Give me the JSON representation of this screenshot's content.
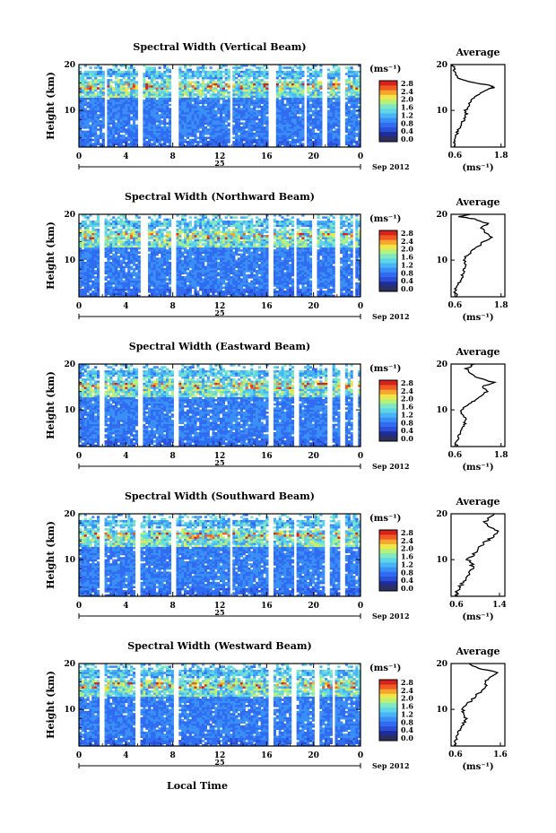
{
  "chart_data": {
    "type": "heatmap",
    "xlabel": "Local Time",
    "x_ticks": [
      "0",
      "4",
      "8",
      "12",
      "16",
      "20",
      "0"
    ],
    "x_range": [
      0,
      24
    ],
    "day_label": "25",
    "month_year_label": "Sep 2012",
    "y_ticks": [
      "20",
      "10"
    ],
    "y_range": [
      2,
      20
    ],
    "ylabel": "Height (km)",
    "colorbar": {
      "unit": "(ms⁻¹)",
      "ticks": [
        "2.8",
        "2.4",
        "2.0",
        "1.6",
        "1.2",
        "0.8",
        "0.4",
        "0.0"
      ],
      "range": [
        0,
        3.0
      ]
    },
    "average_title": "Average",
    "average_unit": "(ms⁻¹)",
    "panels": [
      {
        "title": "Spectral Width (Vertical Beam)",
        "avg_xticks": [
          "0.6",
          "1.8"
        ],
        "avg_xrange": [
          0.5,
          1.9
        ],
        "avg_profile": [
          [
            2,
            0.6
          ],
          [
            3,
            0.58
          ],
          [
            4,
            0.62
          ],
          [
            5,
            0.65
          ],
          [
            6,
            0.7
          ],
          [
            7,
            0.75
          ],
          [
            8,
            0.85
          ],
          [
            9,
            0.9
          ],
          [
            10,
            0.88
          ],
          [
            11,
            0.95
          ],
          [
            12,
            1.0
          ],
          [
            13,
            1.1
          ],
          [
            14,
            1.3
          ],
          [
            15,
            1.6
          ],
          [
            15.5,
            1.5
          ],
          [
            16,
            1.1
          ],
          [
            17,
            0.7
          ],
          [
            18,
            0.62
          ],
          [
            19,
            0.58
          ],
          [
            20,
            0.55
          ]
        ]
      },
      {
        "title": "Spectral Width (Northward Beam)",
        "avg_xticks": [
          "0.6",
          "1.8"
        ],
        "avg_xrange": [
          0.5,
          1.9
        ],
        "avg_profile": [
          [
            2,
            0.65
          ],
          [
            3,
            0.6
          ],
          [
            4,
            0.62
          ],
          [
            5,
            0.7
          ],
          [
            6,
            0.78
          ],
          [
            7,
            0.8
          ],
          [
            8,
            0.85
          ],
          [
            9,
            0.9
          ],
          [
            10,
            0.82
          ],
          [
            11,
            0.9
          ],
          [
            12,
            1.05
          ],
          [
            13,
            1.2
          ],
          [
            14,
            1.35
          ],
          [
            15,
            1.55
          ],
          [
            16,
            1.4
          ],
          [
            17,
            1.3
          ],
          [
            18,
            1.45
          ],
          [
            19,
            1.1
          ],
          [
            19.5,
            0.7
          ],
          [
            20,
            1.0
          ]
        ]
      },
      {
        "title": "Spectral Width (Eastward Beam)",
        "avg_xticks": [
          "0.6",
          "1.8"
        ],
        "avg_xrange": [
          0.5,
          1.9
        ],
        "avg_profile": [
          [
            2,
            0.65
          ],
          [
            3,
            0.62
          ],
          [
            4,
            0.7
          ],
          [
            5,
            0.75
          ],
          [
            6,
            0.8
          ],
          [
            7,
            0.85
          ],
          [
            8,
            0.9
          ],
          [
            9,
            0.8
          ],
          [
            10,
            0.75
          ],
          [
            11,
            0.9
          ],
          [
            12,
            1.1
          ],
          [
            13,
            1.25
          ],
          [
            14,
            1.45
          ],
          [
            15,
            1.3
          ],
          [
            16,
            1.6
          ],
          [
            17,
            1.2
          ],
          [
            18,
            1.0
          ],
          [
            19,
            0.9
          ],
          [
            20,
            1.1
          ]
        ]
      },
      {
        "title": "Spectral Width (Southward Beam)",
        "avg_xticks": [
          "0.6",
          "1.4"
        ],
        "avg_xrange": [
          0.5,
          1.5
        ],
        "avg_profile": [
          [
            2,
            0.62
          ],
          [
            3,
            0.6
          ],
          [
            4,
            0.65
          ],
          [
            5,
            0.72
          ],
          [
            6,
            0.8
          ],
          [
            7,
            0.85
          ],
          [
            8,
            0.9
          ],
          [
            9,
            0.88
          ],
          [
            10,
            0.82
          ],
          [
            11,
            0.9
          ],
          [
            12,
            1.0
          ],
          [
            13,
            1.05
          ],
          [
            14,
            1.15
          ],
          [
            15,
            1.3
          ],
          [
            16,
            1.4
          ],
          [
            17,
            1.25
          ],
          [
            18,
            1.1
          ],
          [
            19,
            1.2
          ],
          [
            20,
            1.3
          ]
        ]
      },
      {
        "title": "Spectral Width (Westward Beam)",
        "avg_xticks": [
          "0.6",
          "1.6"
        ],
        "avg_xrange": [
          0.5,
          1.7
        ],
        "avg_profile": [
          [
            2,
            0.6
          ],
          [
            3,
            0.58
          ],
          [
            4,
            0.62
          ],
          [
            5,
            0.68
          ],
          [
            6,
            0.72
          ],
          [
            7,
            0.78
          ],
          [
            8,
            0.82
          ],
          [
            9,
            0.8
          ],
          [
            10,
            0.75
          ],
          [
            11,
            0.85
          ],
          [
            12,
            0.95
          ],
          [
            13,
            1.05
          ],
          [
            14,
            1.2
          ],
          [
            15,
            1.3
          ],
          [
            16,
            1.25
          ],
          [
            17,
            1.4
          ],
          [
            18,
            1.55
          ],
          [
            19,
            1.1
          ],
          [
            20,
            0.9
          ]
        ]
      }
    ]
  },
  "colors": {
    "colormap": [
      "#1e2d99",
      "#2b4fd6",
      "#2f6cf2",
      "#3a8ff7",
      "#49b4f5",
      "#5fd6e8",
      "#7fe8c0",
      "#b8f07a",
      "#f0e64a",
      "#f7a52e",
      "#ef5b22",
      "#d8221c"
    ],
    "bottom_band": "#2a2f5e"
  }
}
